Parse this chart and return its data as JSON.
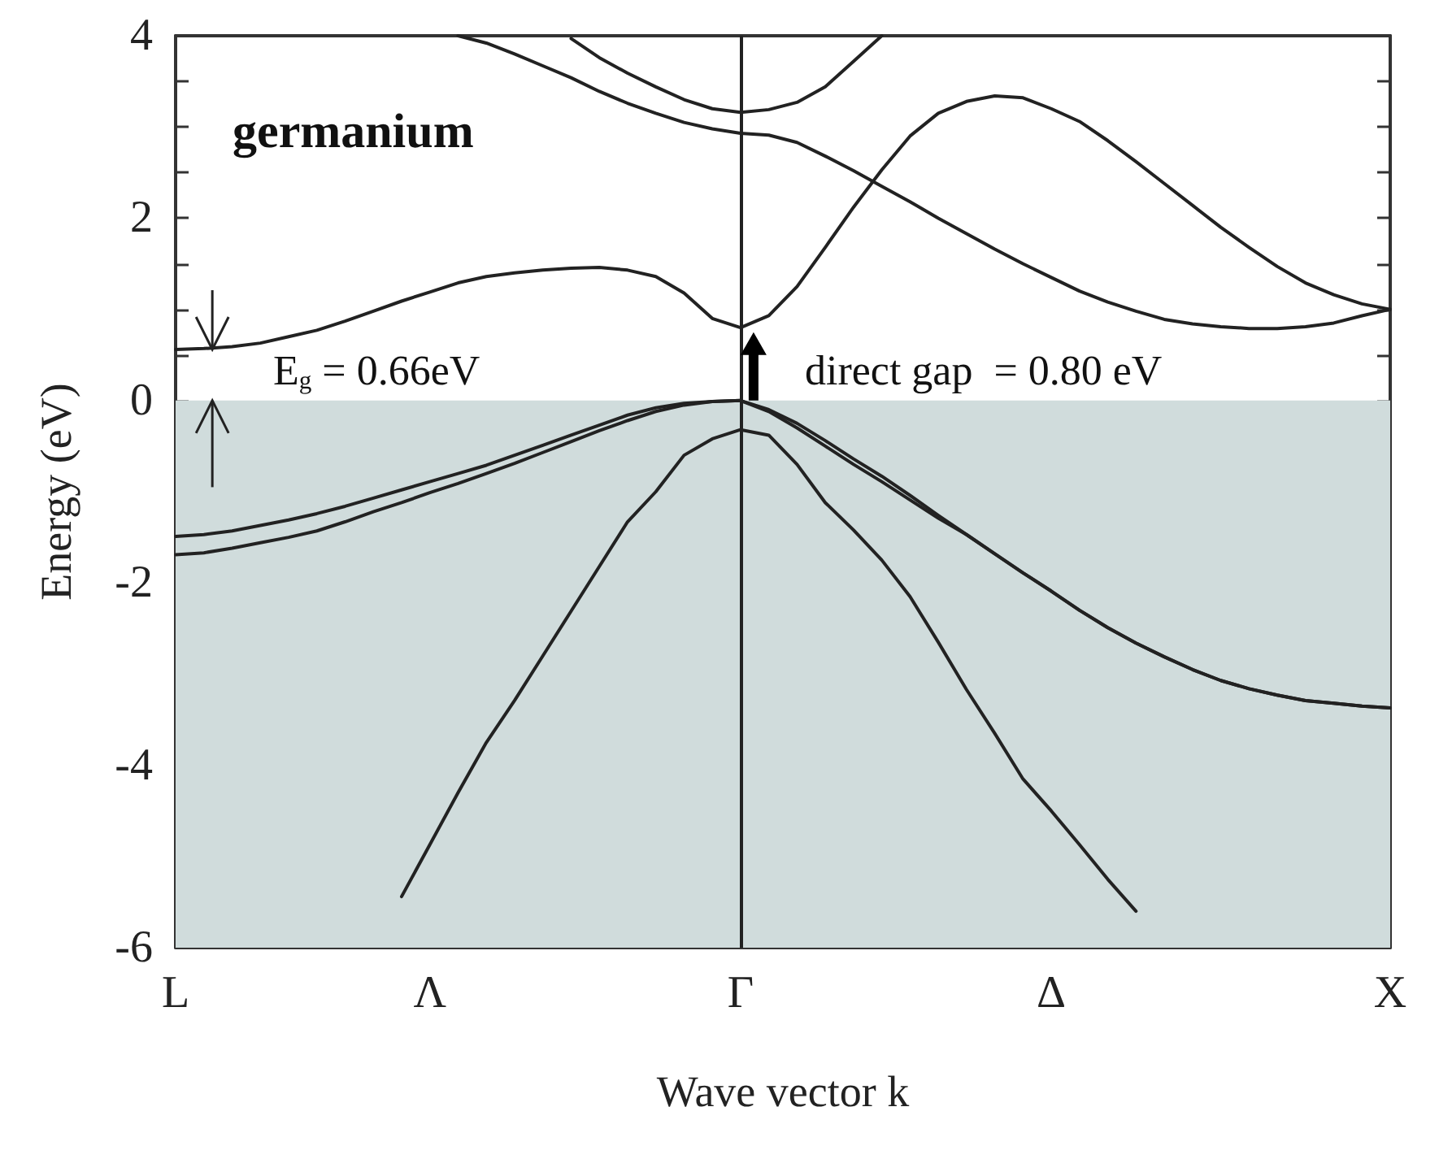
{
  "chart_data": {
    "type": "line",
    "xlabel": "Wave vector k",
    "ylabel": "Energy (eV)",
    "categories": [
      "L",
      null,
      null,
      null,
      null,
      null,
      null,
      null,
      null,
      "Λ",
      null,
      null,
      null,
      null,
      null,
      null,
      null,
      null,
      null,
      null,
      "Γ",
      null,
      null,
      null,
      null,
      null,
      null,
      null,
      null,
      null,
      null,
      "Δ",
      null,
      null,
      null,
      null,
      null,
      null,
      null,
      null,
      null,
      null,
      null,
      "X"
    ],
    "ylim": [
      -6,
      4
    ],
    "yticks": [
      -6,
      {
        "value": -5.5,
        "label": null
      },
      {
        "value": -5,
        "label": null
      },
      {
        "value": -4.5,
        "label": null
      },
      -4,
      {
        "value": -3.5,
        "label": null
      },
      {
        "value": -3,
        "label": null
      },
      {
        "value": -2.5,
        "label": null
      },
      -2,
      {
        "value": -1.5,
        "label": null
      },
      {
        "value": -1,
        "label": null
      },
      {
        "value": -0.5,
        "label": null
      },
      0,
      {
        "value": 0.5,
        "label": null
      },
      {
        "value": 1,
        "label": null
      },
      {
        "value": 1.5,
        "label": null
      },
      2,
      {
        "value": 2.5,
        "label": null
      },
      {
        "value": 3,
        "label": null
      },
      {
        "value": 3.5,
        "label": null
      },
      4
    ],
    "grid": false,
    "marker": "none",
    "line_style": "solid",
    "series": [
      {
        "color": "#222222",
        "values": [
          0.56,
          0.57,
          0.59,
          0.63,
          0.7,
          0.77,
          0.87,
          0.98,
          1.09,
          1.19,
          1.29,
          1.36,
          1.4,
          1.43,
          1.45,
          1.46,
          1.43,
          1.36,
          1.18,
          0.9,
          0.8,
          0.93,
          1.25,
          1.68,
          2.12,
          2.53,
          2.9,
          3.15,
          3.28,
          3.34,
          3.32,
          3.2,
          3.06,
          2.85,
          2.62,
          2.38,
          2.14,
          1.9,
          1.68,
          1.47,
          1.29,
          1.16,
          1.06,
          1.0
        ]
      },
      {
        "color": "#222222",
        "values": [
          null,
          null,
          null,
          null,
          null,
          null,
          null,
          null,
          null,
          null,
          4,
          3.92,
          3.8,
          3.67,
          3.54,
          3.39,
          3.26,
          3.15,
          3.05,
          2.98,
          2.93,
          2.91,
          2.83,
          2.68,
          2.52,
          2.35,
          2.18,
          2.0,
          1.83,
          1.66,
          1.5,
          1.35,
          1.2,
          1.08,
          0.98,
          0.89,
          0.84,
          0.81,
          0.79,
          0.79,
          0.81,
          0.85,
          0.93,
          1.0
        ]
      },
      {
        "color": "#222222",
        "values": [
          null,
          null,
          null,
          null,
          null,
          null,
          null,
          null,
          null,
          null,
          null,
          null,
          null,
          null,
          3.97,
          3.76,
          3.59,
          3.44,
          3.3,
          3.2,
          3.16,
          3.19,
          3.27,
          3.44,
          3.72,
          4.0,
          null,
          null,
          null,
          null,
          null,
          null,
          null,
          null,
          null,
          null,
          null,
          null,
          null,
          null,
          null,
          null,
          null,
          null
        ]
      },
      {
        "color": "#222222",
        "values": [
          -1.49,
          -1.47,
          -1.43,
          -1.37,
          -1.31,
          -1.24,
          -1.16,
          -1.07,
          -0.98,
          -0.89,
          -0.8,
          -0.71,
          -0.6,
          -0.49,
          -0.38,
          -0.27,
          -0.16,
          -0.08,
          -0.03,
          -0.01,
          0,
          -0.1,
          -0.25,
          -0.44,
          -0.64,
          -0.83,
          -1.04,
          -1.26,
          -1.47,
          -1.68,
          -1.89,
          -2.09,
          -2.3,
          -2.49,
          -2.66,
          -2.81,
          -2.95,
          -3.07,
          -3.16,
          -3.23,
          -3.29,
          -3.32,
          -3.35,
          -3.37
        ]
      },
      {
        "color": "#222222",
        "values": [
          -1.69,
          -1.67,
          -1.62,
          -1.56,
          -1.5,
          -1.43,
          -1.33,
          -1.22,
          -1.12,
          -1.01,
          -0.91,
          -0.8,
          -0.69,
          -0.57,
          -0.45,
          -0.33,
          -0.22,
          -0.12,
          -0.05,
          -0.01,
          0,
          -0.12,
          -0.3,
          -0.5,
          -0.7,
          -0.89,
          -1.09,
          -1.29,
          -1.47,
          -1.68,
          -1.89,
          -2.09,
          -2.3,
          -2.49,
          -2.66,
          -2.81,
          -2.95,
          -3.07,
          -3.16,
          -3.23,
          -3.29,
          -3.32,
          -3.35,
          -3.37
        ]
      },
      {
        "color": "#222222",
        "values": [
          null,
          null,
          null,
          null,
          null,
          null,
          null,
          null,
          -5.44,
          -4.87,
          -4.3,
          -3.75,
          -3.29,
          -2.8,
          -2.31,
          -1.82,
          -1.33,
          -1.0,
          -0.6,
          -0.42,
          -0.32,
          -0.38,
          -0.7,
          -1.12,
          -1.42,
          -1.75,
          -2.15,
          -2.65,
          -3.17,
          -3.65,
          -4.15,
          -4.5,
          -4.87,
          -5.25,
          -5.6,
          null,
          null,
          null,
          null,
          null,
          null,
          null,
          null,
          null
        ]
      }
    ],
    "bands": [
      {
        "axis": "y",
        "from": -6,
        "to": 0,
        "color": "#d0dcdc"
      }
    ],
    "ref_lines": [
      {
        "axis": "x",
        "value": "Γ",
        "color": "#222222"
      }
    ],
    "annotations": [
      "germanium",
      "E$_{g}$ = 0.66eV",
      "direct gap  = 0.80 eV"
    ]
  }
}
